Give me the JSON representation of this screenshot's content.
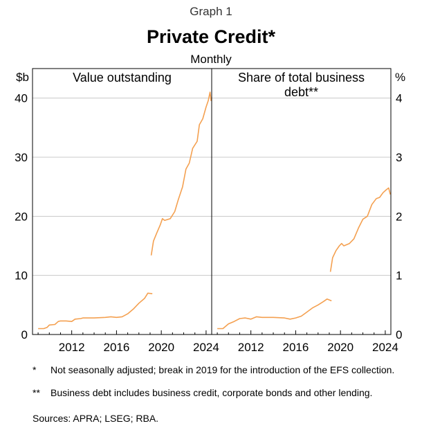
{
  "header": {
    "graph_label": "Graph 1",
    "title": "Private Credit*",
    "subtitle": "Monthly"
  },
  "colors": {
    "series": "#f4a050",
    "axis": "#000000",
    "grid": "#c8c8c8"
  },
  "chart_data": [
    {
      "type": "line",
      "panel_title": "Value outstanding",
      "y_unit": "$b",
      "ylim": [
        0,
        45
      ],
      "yticks": [
        0,
        10,
        20,
        30,
        40
      ],
      "ytick_labels": [
        "0",
        "10",
        "20",
        "30",
        "40"
      ],
      "xlim": [
        2008.5,
        2024.5
      ],
      "xticks": [
        2012,
        2016,
        2020,
        2024
      ],
      "xtick_labels": [
        "2012",
        "2016",
        "2020",
        "2024"
      ],
      "grid": true,
      "series": [
        {
          "segment": "before break",
          "points": [
            [
              2009.0,
              1.0
            ],
            [
              2009.5,
              1.0
            ],
            [
              2009.8,
              1.2
            ],
            [
              2010.0,
              1.6
            ],
            [
              2010.5,
              1.7
            ],
            [
              2010.8,
              2.2
            ],
            [
              2011.0,
              2.3
            ],
            [
              2011.5,
              2.3
            ],
            [
              2012.0,
              2.2
            ],
            [
              2012.3,
              2.6
            ],
            [
              2012.8,
              2.7
            ],
            [
              2013.0,
              2.8
            ],
            [
              2014.0,
              2.8
            ],
            [
              2015.0,
              2.9
            ],
            [
              2015.5,
              3.0
            ],
            [
              2016.0,
              2.9
            ],
            [
              2016.5,
              3.0
            ],
            [
              2017.0,
              3.5
            ],
            [
              2017.5,
              4.3
            ],
            [
              2018.0,
              5.3
            ],
            [
              2018.5,
              6.1
            ],
            [
              2018.8,
              7.0
            ],
            [
              2019.2,
              6.9
            ]
          ]
        },
        {
          "segment": "after break",
          "points": [
            [
              2019.1,
              13.4
            ],
            [
              2019.3,
              15.8
            ],
            [
              2019.6,
              17.2
            ],
            [
              2019.9,
              18.5
            ],
            [
              2020.1,
              19.6
            ],
            [
              2020.3,
              19.3
            ],
            [
              2020.8,
              19.6
            ],
            [
              2021.2,
              20.8
            ],
            [
              2021.5,
              22.7
            ],
            [
              2021.9,
              25.0
            ],
            [
              2022.2,
              28.0
            ],
            [
              2022.5,
              29.0
            ],
            [
              2022.8,
              31.5
            ],
            [
              2023.2,
              32.7
            ],
            [
              2023.4,
              35.5
            ],
            [
              2023.7,
              36.5
            ],
            [
              2024.0,
              38.5
            ],
            [
              2024.2,
              39.6
            ],
            [
              2024.35,
              41.0
            ],
            [
              2024.45,
              39.5
            ]
          ]
        }
      ]
    },
    {
      "type": "line",
      "panel_title": "Share of total business debt**",
      "y_unit": "%",
      "ylim": [
        0,
        4.5
      ],
      "yticks": [
        0,
        1,
        2,
        3,
        4
      ],
      "ytick_labels": [
        "0",
        "1",
        "2",
        "3",
        "4"
      ],
      "xlim": [
        2008.5,
        2024.5
      ],
      "xticks": [
        2012,
        2016,
        2020,
        2024
      ],
      "xtick_labels": [
        "2012",
        "2016",
        "2020",
        "2024"
      ],
      "grid": true,
      "series": [
        {
          "segment": "before break",
          "points": [
            [
              2009.0,
              0.1
            ],
            [
              2009.5,
              0.1
            ],
            [
              2010.0,
              0.18
            ],
            [
              2010.5,
              0.22
            ],
            [
              2011.0,
              0.27
            ],
            [
              2011.5,
              0.28
            ],
            [
              2012.0,
              0.26
            ],
            [
              2012.5,
              0.3
            ],
            [
              2013.0,
              0.29
            ],
            [
              2014.0,
              0.29
            ],
            [
              2015.0,
              0.28
            ],
            [
              2015.5,
              0.26
            ],
            [
              2016.0,
              0.28
            ],
            [
              2016.5,
              0.31
            ],
            [
              2017.0,
              0.38
            ],
            [
              2017.5,
              0.45
            ],
            [
              2018.0,
              0.5
            ],
            [
              2018.5,
              0.56
            ],
            [
              2018.8,
              0.6
            ],
            [
              2019.2,
              0.57
            ]
          ]
        },
        {
          "segment": "after break",
          "points": [
            [
              2019.1,
              1.06
            ],
            [
              2019.3,
              1.3
            ],
            [
              2019.6,
              1.42
            ],
            [
              2019.9,
              1.5
            ],
            [
              2020.1,
              1.54
            ],
            [
              2020.3,
              1.5
            ],
            [
              2020.8,
              1.54
            ],
            [
              2021.2,
              1.62
            ],
            [
              2021.6,
              1.8
            ],
            [
              2022.0,
              1.95
            ],
            [
              2022.4,
              2.0
            ],
            [
              2022.8,
              2.2
            ],
            [
              2023.2,
              2.3
            ],
            [
              2023.5,
              2.32
            ],
            [
              2023.8,
              2.4
            ],
            [
              2024.1,
              2.45
            ],
            [
              2024.3,
              2.48
            ],
            [
              2024.45,
              2.37
            ]
          ]
        }
      ]
    }
  ],
  "footnotes": [
    {
      "mark": "*",
      "text": "Not seasonally adjusted; break in 2019 for the introduction of the EFS collection."
    },
    {
      "mark": "**",
      "text": "Business debt includes business credit, corporate bonds and other lending."
    }
  ],
  "sources": "Sources: APRA; LSEG; RBA."
}
